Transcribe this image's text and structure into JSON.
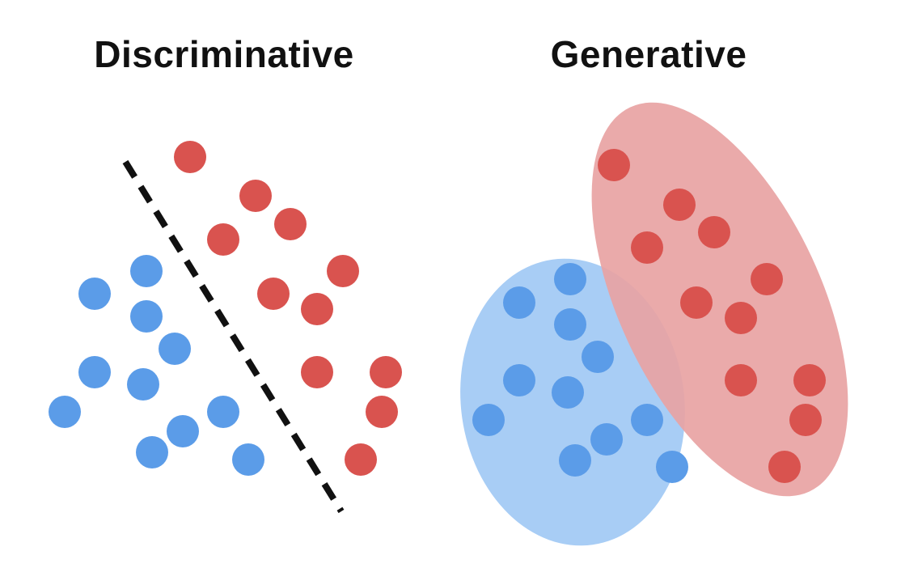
{
  "panels": {
    "discriminative": {
      "title": "Discriminative"
    },
    "generative": {
      "title": "Generative"
    }
  },
  "colors": {
    "red_point": "#d9534f",
    "blue_point": "#5b9ce8",
    "red_region": "#e8a3a3",
    "blue_region": "#a8cdf5",
    "boundary": "#111111"
  }
}
